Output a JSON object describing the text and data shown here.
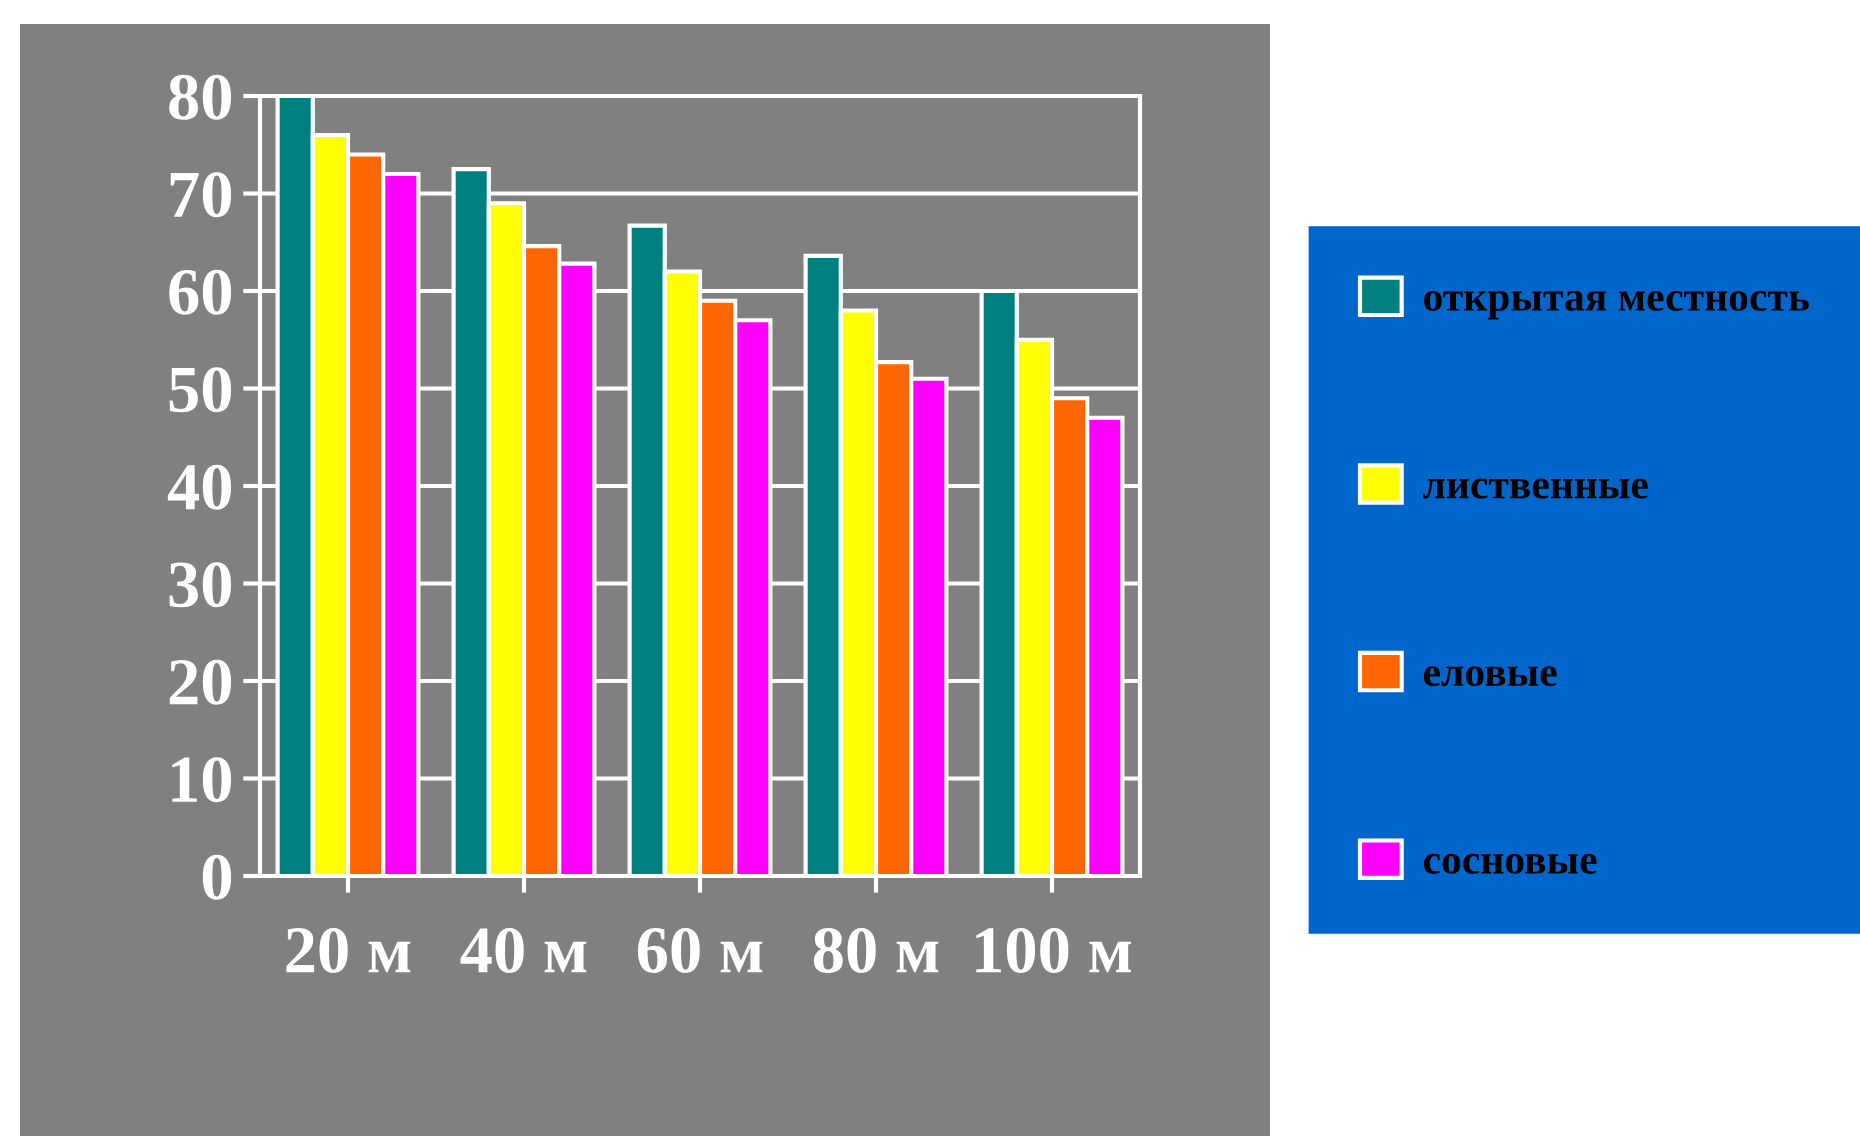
{
  "chart_data": {
    "type": "bar",
    "categories": [
      "20 м",
      "40 м",
      "60 м",
      "80 м",
      "100 м"
    ],
    "series": [
      {
        "name": "открытая местность",
        "color": "#008080",
        "values": [
          80,
          72.5,
          66.7,
          63.6,
          60
        ]
      },
      {
        "name": "лиственные",
        "color": "#ffff00",
        "values": [
          76,
          69,
          62,
          58,
          55
        ]
      },
      {
        "name": "еловые",
        "color": "#ff6600",
        "values": [
          74,
          64.6,
          59,
          52.7,
          49
        ]
      },
      {
        "name": "сосновые",
        "color": "#ff00ff",
        "values": [
          72,
          62.8,
          57,
          51,
          47
        ]
      }
    ],
    "ylim": [
      0,
      80
    ],
    "yticks": [
      0,
      10,
      20,
      30,
      40,
      50,
      60,
      70,
      80
    ],
    "grid": "y",
    "legend": "right"
  }
}
